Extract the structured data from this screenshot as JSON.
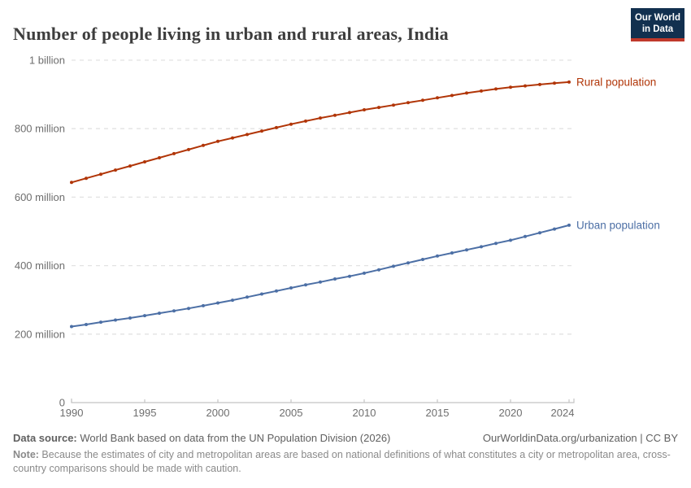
{
  "header": {
    "title": "Number of people living in urban and rural areas, India",
    "logo": {
      "line1": "Our World",
      "line2": "in Data"
    }
  },
  "colors": {
    "rural": "#B13507",
    "urban": "#4C6FA5",
    "grid": "#E2E2E2",
    "axis": "#C4C4C4",
    "tick_label": "#6E6E6E",
    "title": "#3D3D3D",
    "footer": "#606060",
    "note": "#8A8A8A",
    "logo_bg": "#12304F",
    "logo_bar": "#C0392B"
  },
  "chart_data": {
    "type": "line",
    "title": "Number of people living in urban and rural areas, India",
    "unit": "million people",
    "grid": "dashed-horizontal",
    "legend": "end-of-line-labels",
    "markers": true,
    "ylim": [
      0,
      1000
    ],
    "x": [
      1990,
      1991,
      1992,
      1993,
      1994,
      1995,
      1996,
      1997,
      1998,
      1999,
      2000,
      2001,
      2002,
      2003,
      2004,
      2005,
      2006,
      2007,
      2008,
      2009,
      2010,
      2011,
      2012,
      2013,
      2014,
      2015,
      2016,
      2017,
      2018,
      2019,
      2020,
      2021,
      2022,
      2023,
      2024
    ],
    "x_ticks": [
      1990,
      1995,
      2000,
      2005,
      2010,
      2015,
      2020,
      2024
    ],
    "y_ticks": [
      {
        "value": 0,
        "label": "0"
      },
      {
        "value": 200,
        "label": "200 million"
      },
      {
        "value": 400,
        "label": "400 million"
      },
      {
        "value": 600,
        "label": "600 million"
      },
      {
        "value": 800,
        "label": "800 million"
      },
      {
        "value": 1000,
        "label": "1 billion"
      }
    ],
    "series": [
      {
        "name": "Rural population",
        "color": "#B13507",
        "values": [
          643,
          655,
          667,
          679,
          691,
          703,
          715,
          727,
          739,
          751,
          763,
          773,
          783,
          793,
          803,
          813,
          822,
          831,
          839,
          847,
          855,
          862,
          869,
          876,
          883,
          890,
          897,
          904,
          910,
          916,
          921,
          925,
          929,
          933,
          936
        ]
      },
      {
        "name": "Urban population",
        "color": "#4C6FA5",
        "values": [
          222,
          228,
          235,
          241,
          247,
          254,
          261,
          268,
          275,
          283,
          291,
          299,
          308,
          317,
          326,
          335,
          344,
          352,
          361,
          369,
          378,
          388,
          398,
          408,
          418,
          428,
          437,
          446,
          455,
          465,
          474,
          485,
          496,
          507,
          518
        ]
      }
    ]
  },
  "footer": {
    "source_label": "Data source:",
    "source_text": " World Bank based on data from the UN Population Division (2026)",
    "cite_text": "OurWorldinData.org/urbanization | CC BY",
    "note_label": "Note:",
    "note_text": " Because the estimates of city and metropolitan areas are based on national definitions of what constitutes a city or metropolitan area, cross-country comparisons should be made with caution."
  }
}
